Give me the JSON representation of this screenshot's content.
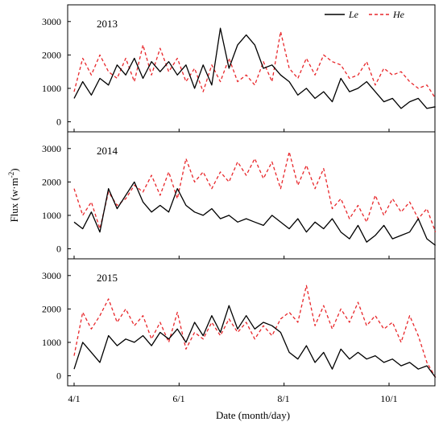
{
  "chart_data": {
    "type": "line",
    "ylabel": "Flux (w·m⁻²)",
    "ylabel_parts": {
      "main": "Flux (w·m",
      "sup": "-2",
      "end": ")"
    },
    "xlabel": "Date (month/day)",
    "x_ticks": [
      "4/1",
      "6/1",
      "8/1",
      "10/1"
    ],
    "y_ticks": [
      0,
      1000,
      2000,
      3000
    ],
    "ylim": [
      -300,
      3500
    ],
    "legend": {
      "position": "top-right",
      "entries": [
        {
          "name": "Le",
          "color": "#000000",
          "style": "solid"
        },
        {
          "name": "He",
          "color": "#e8262a",
          "style": "dashed"
        }
      ]
    },
    "panels": [
      {
        "label": "2013",
        "series": [
          {
            "name": "Le",
            "color": "#000000",
            "x": [
              "4/1",
              "4/6",
              "4/11",
              "4/16",
              "4/21",
              "4/26",
              "5/1",
              "5/6",
              "5/11",
              "5/16",
              "5/21",
              "5/26",
              "5/31",
              "6/5",
              "6/10",
              "6/15",
              "6/20",
              "6/25",
              "6/30",
              "7/5",
              "7/10",
              "7/15",
              "7/20",
              "7/25",
              "7/30",
              "8/4",
              "8/9",
              "8/14",
              "8/19",
              "8/24",
              "8/29",
              "9/3",
              "9/8",
              "9/13",
              "9/18",
              "9/23",
              "9/28",
              "10/3",
              "10/8",
              "10/13",
              "10/18",
              "10/23",
              "10/28"
            ],
            "values": [
              700,
              1200,
              800,
              1300,
              1100,
              1700,
              1400,
              1900,
              1300,
              1800,
              1500,
              1800,
              1400,
              1700,
              1000,
              1700,
              1100,
              2800,
              1600,
              2300,
              2600,
              2300,
              1600,
              1700,
              1400,
              1200,
              800,
              1000,
              700,
              900,
              600,
              1300,
              900,
              1000,
              1200,
              900,
              600,
              700,
              400,
              600,
              700,
              400,
              450
            ]
          },
          {
            "name": "He",
            "color": "#e8262a",
            "x": [
              "4/1",
              "4/6",
              "4/11",
              "4/16",
              "4/21",
              "4/26",
              "5/1",
              "5/6",
              "5/11",
              "5/16",
              "5/21",
              "5/26",
              "5/31",
              "6/5",
              "6/10",
              "6/15",
              "6/20",
              "6/25",
              "6/30",
              "7/5",
              "7/10",
              "7/15",
              "7/20",
              "7/25",
              "7/30",
              "8/4",
              "8/9",
              "8/14",
              "8/19",
              "8/24",
              "8/29",
              "9/3",
              "9/8",
              "9/13",
              "9/18",
              "9/23",
              "9/28",
              "10/3",
              "10/8",
              "10/13",
              "10/18",
              "10/23",
              "10/28"
            ],
            "values": [
              900,
              1900,
              1400,
              2000,
              1500,
              1300,
              1900,
              1200,
              2300,
              1400,
              2200,
              1500,
              1900,
              1200,
              1600,
              900,
              1700,
              1200,
              1900,
              1200,
              1400,
              1100,
              1800,
              1200,
              2700,
              1600,
              1300,
              1900,
              1400,
              2000,
              1800,
              1700,
              1300,
              1400,
              1800,
              1100,
              1600,
              1400,
              1500,
              1200,
              1000,
              1100,
              700
            ]
          }
        ]
      },
      {
        "label": "2014",
        "series": [
          {
            "name": "Le",
            "color": "#000000",
            "x": [
              "4/1",
              "4/6",
              "4/11",
              "4/16",
              "4/21",
              "4/26",
              "5/1",
              "5/6",
              "5/11",
              "5/16",
              "5/21",
              "5/26",
              "5/31",
              "6/5",
              "6/10",
              "6/15",
              "6/20",
              "6/25",
              "6/30",
              "7/5",
              "7/10",
              "7/15",
              "7/20",
              "7/25",
              "7/30",
              "8/4",
              "8/9",
              "8/14",
              "8/19",
              "8/24",
              "8/29",
              "9/3",
              "9/8",
              "9/13",
              "9/18",
              "9/23",
              "9/28",
              "10/3",
              "10/8",
              "10/13",
              "10/18",
              "10/23",
              "10/28"
            ],
            "values": [
              800,
              600,
              1100,
              500,
              1800,
              1200,
              1600,
              2000,
              1400,
              1100,
              1300,
              1100,
              1800,
              1300,
              1100,
              1000,
              1200,
              900,
              1000,
              800,
              900,
              800,
              700,
              1000,
              800,
              600,
              900,
              500,
              800,
              600,
              900,
              500,
              300,
              700,
              200,
              400,
              700,
              300,
              400,
              500,
              900,
              300,
              100
            ]
          },
          {
            "name": "He",
            "color": "#e8262a",
            "x": [
              "4/1",
              "4/6",
              "4/11",
              "4/16",
              "4/21",
              "4/26",
              "5/1",
              "5/6",
              "5/11",
              "5/16",
              "5/21",
              "5/26",
              "5/31",
              "6/5",
              "6/10",
              "6/15",
              "6/20",
              "6/25",
              "6/30",
              "7/5",
              "7/10",
              "7/15",
              "7/20",
              "7/25",
              "7/30",
              "8/4",
              "8/9",
              "8/14",
              "8/19",
              "8/24",
              "8/29",
              "9/3",
              "9/8",
              "9/13",
              "9/18",
              "9/23",
              "9/28",
              "10/3",
              "10/8",
              "10/13",
              "10/18",
              "10/23",
              "10/28"
            ],
            "values": [
              1800,
              1000,
              1400,
              600,
              1700,
              1300,
              1500,
              1900,
              1700,
              2200,
              1600,
              2300,
              1500,
              2700,
              2000,
              2300,
              1800,
              2300,
              2000,
              2600,
              2200,
              2700,
              2100,
              2600,
              1800,
              2900,
              1900,
              2500,
              1800,
              2400,
              1200,
              1500,
              900,
              1300,
              800,
              1600,
              1000,
              1500,
              1100,
              1400,
              900,
              1200,
              500
            ]
          }
        ]
      },
      {
        "label": "2015",
        "series": [
          {
            "name": "Le",
            "color": "#000000",
            "x": [
              "4/1",
              "4/6",
              "4/11",
              "4/16",
              "4/21",
              "4/26",
              "5/1",
              "5/6",
              "5/11",
              "5/16",
              "5/21",
              "5/26",
              "5/31",
              "6/5",
              "6/10",
              "6/15",
              "6/20",
              "6/25",
              "6/30",
              "7/5",
              "7/10",
              "7/15",
              "7/20",
              "7/25",
              "7/30",
              "8/4",
              "8/9",
              "8/14",
              "8/19",
              "8/24",
              "8/29",
              "9/3",
              "9/8",
              "9/13",
              "9/18",
              "9/23",
              "9/28",
              "10/3",
              "10/8",
              "10/13",
              "10/18",
              "10/23",
              "10/28"
            ],
            "values": [
              200,
              1000,
              700,
              400,
              1200,
              900,
              1100,
              1000,
              1200,
              900,
              1300,
              1100,
              1400,
              1000,
              1600,
              1200,
              1800,
              1300,
              2100,
              1400,
              1800,
              1400,
              1600,
              1500,
              1300,
              700,
              500,
              900,
              400,
              700,
              200,
              800,
              500,
              700,
              500,
              600,
              400,
              500,
              300,
              400,
              200,
              300,
              -50
            ]
          },
          {
            "name": "He",
            "color": "#e8262a",
            "x": [
              "4/1",
              "4/6",
              "4/11",
              "4/16",
              "4/21",
              "4/26",
              "5/1",
              "5/6",
              "5/11",
              "5/16",
              "5/21",
              "5/26",
              "5/31",
              "6/5",
              "6/10",
              "6/15",
              "6/20",
              "6/25",
              "6/30",
              "7/5",
              "7/10",
              "7/15",
              "7/20",
              "7/25",
              "7/30",
              "8/4",
              "8/9",
              "8/14",
              "8/19",
              "8/24",
              "8/29",
              "9/3",
              "9/8",
              "9/13",
              "9/18",
              "9/23",
              "9/28",
              "10/3",
              "10/8",
              "10/13",
              "10/18",
              "10/23",
              "10/28"
            ],
            "values": [
              600,
              1900,
              1400,
              1800,
              2300,
              1600,
              2000,
              1500,
              1800,
              1100,
              1600,
              1000,
              1900,
              800,
              1300,
              1100,
              1600,
              1200,
              1700,
              1300,
              1600,
              1100,
              1500,
              1200,
              1700,
              1900,
              1600,
              2700,
              1500,
              2100,
              1400,
              2000,
              1600,
              2200,
              1500,
              1800,
              1400,
              1600,
              1000,
              1800,
              1200,
              400,
              -50
            ]
          }
        ]
      }
    ]
  }
}
